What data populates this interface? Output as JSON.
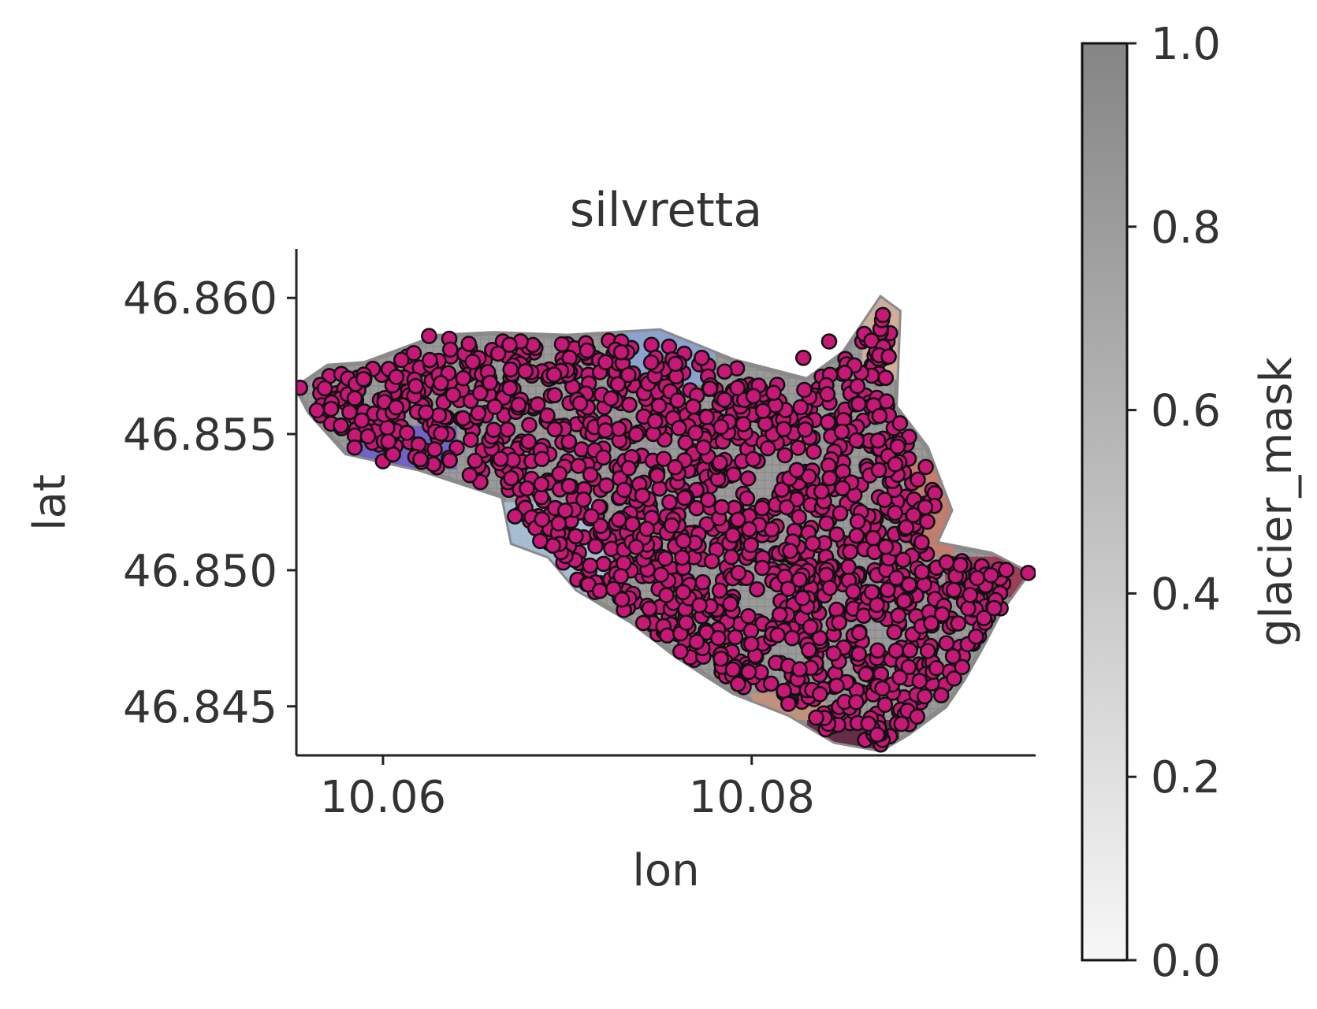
{
  "chart_data": {
    "type": "scatter",
    "title": "silvretta",
    "xlabel": "lon",
    "ylabel": "lat",
    "xlim": [
      10.0553,
      10.0954
    ],
    "ylim": [
      46.8432,
      46.8618
    ],
    "x_ticks": [
      "10.06",
      "10.08"
    ],
    "x_tick_values": [
      10.06,
      10.08
    ],
    "y_ticks": [
      "46.845",
      "46.850",
      "46.855",
      "46.860"
    ],
    "y_tick_values": [
      46.845,
      46.85,
      46.855,
      46.86
    ],
    "grid": false,
    "background": {
      "description": "gridded glacier_mask cells over the glacier outline, gray overlay with colored cell values",
      "outline_polygon": [
        [
          10.0553,
          46.8567
        ],
        [
          10.057,
          46.8575
        ],
        [
          10.059,
          46.8576
        ],
        [
          10.063,
          46.8586
        ],
        [
          10.066,
          46.8587
        ],
        [
          10.07,
          46.8586
        ],
        [
          10.075,
          46.8588
        ],
        [
          10.079,
          46.8577
        ],
        [
          10.083,
          46.857
        ],
        [
          10.085,
          46.858
        ],
        [
          10.087,
          46.86
        ],
        [
          10.088,
          46.8595
        ],
        [
          10.0878,
          46.856
        ],
        [
          10.0895,
          46.8545
        ],
        [
          10.0908,
          46.8522
        ],
        [
          10.09,
          46.851
        ],
        [
          10.093,
          46.8506
        ],
        [
          10.095,
          46.8499
        ],
        [
          10.0935,
          46.8485
        ],
        [
          10.0925,
          46.8472
        ],
        [
          10.0915,
          46.846
        ],
        [
          10.0905,
          46.845
        ],
        [
          10.0885,
          46.844
        ],
        [
          10.087,
          46.8434
        ],
        [
          10.0845,
          46.8437
        ],
        [
          10.082,
          46.8447
        ],
        [
          10.079,
          46.8455
        ],
        [
          10.076,
          46.8468
        ],
        [
          10.0735,
          46.8481
        ],
        [
          10.0705,
          46.8493
        ],
        [
          10.069,
          46.8505
        ],
        [
          10.067,
          46.851
        ],
        [
          10.0665,
          46.8527
        ],
        [
          10.062,
          46.8537
        ],
        [
          10.058,
          46.8543
        ],
        [
          10.056,
          46.8558
        ]
      ]
    },
    "colorbar": {
      "label": "glacier_mask",
      "min": 0.0,
      "max": 1.0,
      "ticks": [
        "0.0",
        "0.2",
        "0.4",
        "0.6",
        "0.8",
        "1.0"
      ],
      "tick_values": [
        0,
        0.2,
        0.4,
        0.6,
        0.8,
        1.0
      ],
      "color_low": "#f7f7f7",
      "color_high": "#858585"
    },
    "series": [
      {
        "marker": "circle",
        "marker_fill": "#c71878",
        "marker_edge": "#111111",
        "count_estimate": 1600,
        "points_sample": [
          [
            10.0555,
            46.8567
          ],
          [
            10.0575,
            46.8565
          ],
          [
            10.0585,
            46.8556
          ],
          [
            10.06,
            46.8572
          ],
          [
            10.0615,
            46.8575
          ],
          [
            10.0625,
            46.8586
          ],
          [
            10.0636,
            46.8585
          ],
          [
            10.065,
            46.8578
          ],
          [
            10.0665,
            46.8584
          ],
          [
            10.0682,
            46.858
          ],
          [
            10.07,
            46.8583
          ],
          [
            10.0715,
            46.8578
          ],
          [
            10.073,
            46.857
          ],
          [
            10.0745,
            46.8565
          ],
          [
            10.076,
            46.856
          ],
          [
            10.079,
            46.8558
          ],
          [
            10.0815,
            46.8562
          ],
          [
            10.0828,
            46.8578
          ],
          [
            10.0842,
            46.8584
          ],
          [
            10.086,
            46.8584
          ],
          [
            10.087,
            46.856
          ],
          [
            10.088,
            46.8548
          ],
          [
            10.0887,
            46.8532
          ],
          [
            10.0878,
            46.852
          ],
          [
            10.095,
            46.8499
          ],
          [
            10.0935,
            46.8486
          ],
          [
            10.092,
            46.8473
          ],
          [
            10.0905,
            46.8458
          ],
          [
            10.088,
            46.8448
          ],
          [
            10.087,
            46.8436
          ],
          [
            10.0845,
            46.8447
          ],
          [
            10.082,
            46.8452
          ],
          [
            10.0795,
            46.8462
          ],
          [
            10.077,
            46.8472
          ],
          [
            10.0745,
            46.8482
          ],
          [
            10.0715,
            46.8492
          ],
          [
            10.069,
            46.851
          ],
          [
            10.0676,
            46.8525
          ],
          [
            10.064,
            46.8545
          ],
          [
            10.061,
            46.856
          ],
          [
            10.06,
            46.854
          ],
          [
            10.065,
            46.8555
          ],
          [
            10.07,
            46.854
          ],
          [
            10.075,
            46.853
          ],
          [
            10.08,
            46.852
          ],
          [
            10.085,
            46.851
          ],
          [
            10.083,
            46.848
          ],
          [
            10.088,
            46.848
          ]
        ]
      }
    ]
  }
}
